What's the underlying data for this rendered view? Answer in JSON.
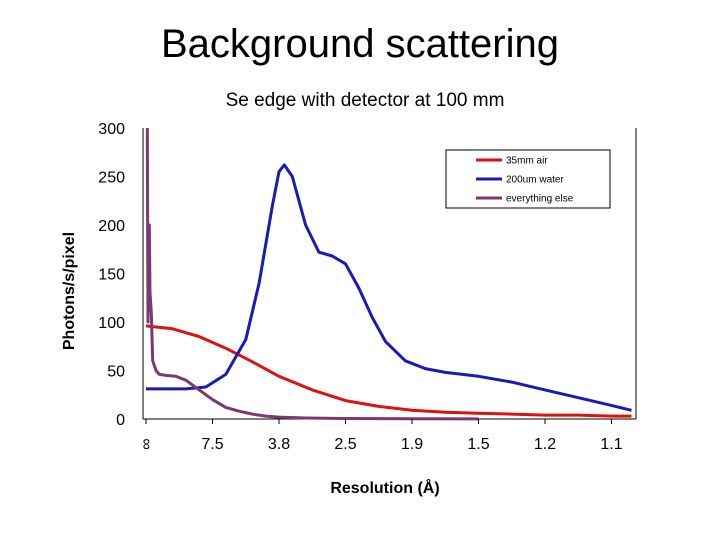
{
  "slide": {
    "title": "Background scattering"
  },
  "chart_data": {
    "type": "line",
    "title": "Se edge with detector at 100 mm",
    "xlabel": "Resolution (Å)",
    "ylabel": "Photons/s/pixel",
    "ylim": [
      0,
      300
    ],
    "yticks": [
      0,
      50,
      100,
      150,
      200,
      250,
      300
    ],
    "x_index_range": [
      0,
      10
    ],
    "xticks": [
      {
        "pos": 0,
        "label": "∞"
      },
      {
        "pos": 1,
        "label": "7.5"
      },
      {
        "pos": 2,
        "label": "3.8"
      },
      {
        "pos": 3,
        "label": "2.5"
      },
      {
        "pos": 4,
        "label": "1.9"
      },
      {
        "pos": 5,
        "label": "1.5"
      },
      {
        "pos": 6,
        "label": "1.2"
      },
      {
        "pos": 7,
        "label": "1.1"
      }
    ],
    "legend_position": "top-right",
    "series": [
      {
        "name": "35mm air",
        "color": "#dd1111",
        "x": [
          0,
          0.4,
          0.8,
          1.2,
          1.6,
          2.0,
          2.5,
          3.0,
          3.5,
          4.0,
          4.5,
          5.0,
          5.5,
          6.0,
          6.5,
          7.0,
          7.3
        ],
        "y": [
          96,
          93,
          85,
          73,
          59,
          44,
          30,
          19,
          13,
          9,
          7,
          6,
          5,
          4,
          4,
          3,
          3
        ]
      },
      {
        "name": "200um water",
        "color": "#1a1ab4",
        "x": [
          0,
          0.2,
          0.6,
          0.9,
          1.2,
          1.5,
          1.7,
          1.9,
          2.0,
          2.08,
          2.2,
          2.4,
          2.6,
          2.8,
          3.0,
          3.2,
          3.4,
          3.6,
          3.9,
          4.2,
          4.5,
          5.0,
          5.5,
          6.0,
          6.5,
          7.0,
          7.3
        ],
        "y": [
          31,
          31,
          31,
          33,
          46,
          82,
          140,
          220,
          255,
          262,
          250,
          200,
          172,
          168,
          160,
          135,
          105,
          80,
          60,
          52,
          48,
          44,
          38,
          30,
          22,
          14,
          9
        ]
      },
      {
        "name": "everything else",
        "color": "#7a3a6e",
        "x": [
          0.02,
          0.03,
          0.05,
          0.06,
          0.08,
          0.1,
          0.15,
          0.2,
          0.3,
          0.45,
          0.6,
          0.8,
          1.0,
          1.2,
          1.4,
          1.6,
          1.8,
          2.0,
          2.4,
          3.0,
          4.0,
          5.0
        ],
        "y": [
          300,
          100,
          200,
          130,
          110,
          60,
          50,
          46,
          45,
          44,
          40,
          30,
          20,
          12,
          8,
          5,
          3,
          2,
          1,
          0.5,
          0.2,
          0.1
        ]
      }
    ]
  }
}
